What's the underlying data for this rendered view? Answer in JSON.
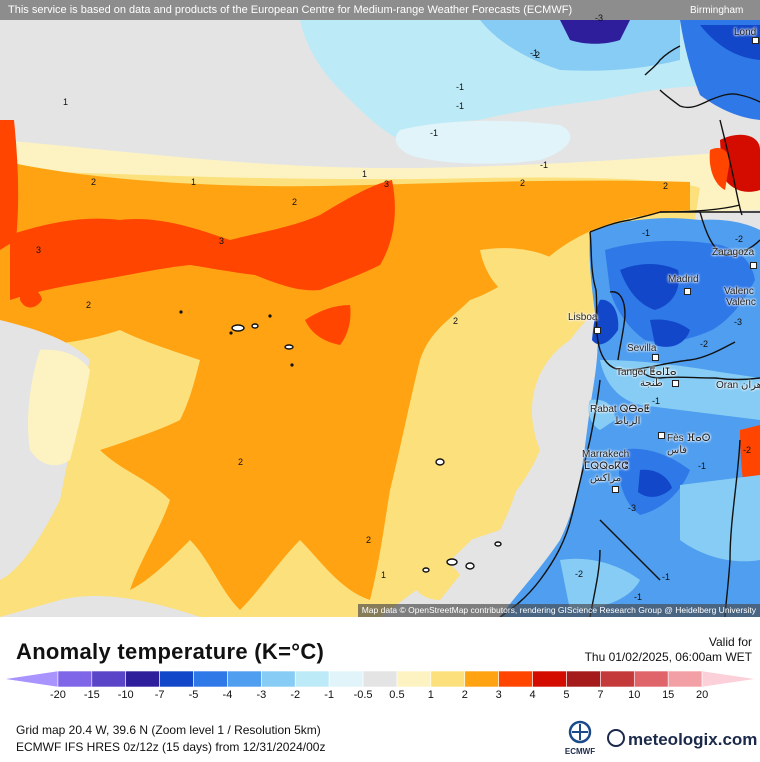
{
  "map": {
    "attribution_top": "This service is based on data and products of the European Centre for Medium-range Weather Forecasts (ECMWF)",
    "attribution_bottom": "Map data © OpenStreetMap contributors, rendering GIScience Research Group @ Heidelberg University",
    "cities": [
      {
        "name": "Birmingham"
      },
      {
        "name": "Lond"
      },
      {
        "name": "Zaragoza"
      },
      {
        "name": "Madrid"
      },
      {
        "name": "Valenc"
      },
      {
        "name": "Valènc"
      },
      {
        "name": "Lisboa"
      },
      {
        "name": "Sevilla"
      },
      {
        "name": "Tanger ⵟⴰⵏⵊⴰ"
      },
      {
        "name": "طنجة"
      },
      {
        "name": "Oran وهران"
      },
      {
        "name": "Rabat ⵕⴱⴰⵟ"
      },
      {
        "name": "الرباط"
      },
      {
        "name": "Fès ⴼⴰⵙ"
      },
      {
        "name": "فاس"
      },
      {
        "name": "Marrakech"
      },
      {
        "name": "ⵎⵕⵕⴰⴽⵛ"
      },
      {
        "name": "مراكش"
      }
    ],
    "contour_labels": [
      "1",
      "2",
      "3",
      "-1",
      "-2",
      "-3",
      "-1",
      "1",
      "2",
      "2",
      "3",
      "-1",
      "-1",
      "-1",
      "-2",
      "1",
      "2",
      "3",
      "2",
      "2",
      "2",
      "2",
      "1",
      "-1",
      "-2",
      "-3",
      "-1",
      "-2",
      "-3",
      "-1",
      "-2",
      "-1",
      "-1",
      "-2"
    ]
  },
  "legend": {
    "title": "Anomaly temperature (K=°C)",
    "valid_label": "Valid for",
    "valid_time": "Thu 01/02/2025, 06:00am WET",
    "colors": [
      "#a993ff",
      "#7f66e8",
      "#5a45c8",
      "#2f1e9b",
      "#1147c8",
      "#2f78e8",
      "#4f9eef",
      "#86ccf5",
      "#bdeaf7",
      "#e1f4fa",
      "#e4e4e4",
      "#fdf3c2",
      "#fbe07c",
      "#ffa312",
      "#ff4500",
      "#d40c00",
      "#a51b1b",
      "#c43a3a",
      "#e0656b",
      "#f2a0a6",
      "#fbd0d8"
    ],
    "ticks": [
      "-20",
      "-15",
      "-10",
      "-7",
      "-5",
      "-4",
      "-3",
      "-2",
      "-1",
      "-0.5",
      "0.5",
      "1",
      "2",
      "3",
      "4",
      "5",
      "7",
      "10",
      "15",
      "20"
    ],
    "grid_info": "Grid map 20.4 W, 39.6 N (Zoom level 1 / Resolution 5km)",
    "run_info": "ECMWF IFS HRES 0z/12z (15 days)  from  12/31/2024/00z",
    "ecmwf_logo_text": "ECMWF",
    "brand": "meteologix.com"
  }
}
